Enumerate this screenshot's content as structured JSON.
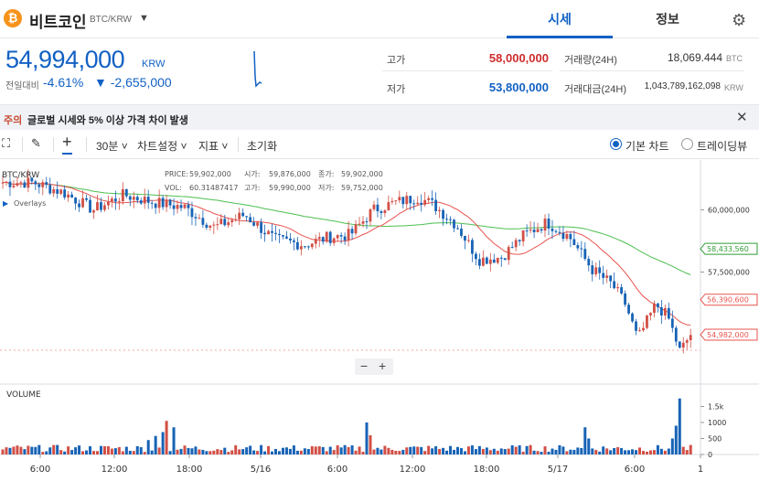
{
  "header": {
    "coin_symbol": "₿",
    "coin_name": "비트코인",
    "pair": "BTC/KRW",
    "caret": "▼",
    "tabs": [
      "시세",
      "정보"
    ],
    "settings_icon": "gear-icon"
  },
  "price": {
    "current": "54,994,000",
    "unit": "KRW",
    "change_label": "전일대비",
    "change_rate": "-4.61%",
    "change_amount": "▼ -2,655,000"
  },
  "stats": {
    "high_label": "고가",
    "high": "58,000,000",
    "low_label": "저가",
    "low": "53,800,000",
    "volume_label": "거래량(24H)",
    "volume": "18,069.444",
    "volume_unit": "BTC",
    "amount_label": "거래대금(24H)",
    "amount": "1,043,789,162,098",
    "amount_unit": "KRW"
  },
  "notice": {
    "tag": "주의",
    "text": "글로벌 시세와 5% 이상 가격 차이 발생",
    "close_icon": "close-icon"
  },
  "toolbar": {
    "fullscreen_icon": "fullscreen-icon",
    "draw_icon": "pencil-icon",
    "crosshair_icon": "crosshair-icon",
    "interval": "30분 ˅",
    "chart_settings": "차트설정 ˅",
    "indicators": "지표 ˅",
    "reset": "초기화",
    "basic_chart": "기본 차트",
    "tradingview": "트레이딩뷰"
  },
  "chart_data": {
    "type": "candlestick",
    "pair": "BTC/KRW",
    "legend": {
      "price_label": "PRICE:",
      "price": "59,902,000",
      "open_label": "시가:",
      "open": "59,876,000",
      "close_label": "종가:",
      "close": "59,902,000",
      "vol_label": "VOL:",
      "vol": "60.31487417",
      "high_label": "고가:",
      "high": "59,990,000",
      "low_label": "저가:",
      "low": "59,752,000"
    },
    "overlays_label": "Overlays",
    "volume_label": "VOLUME",
    "y_ticks": [
      "60,000,000",
      "57,500,000"
    ],
    "y_tick_values": [
      60000000,
      57500000
    ],
    "volume_ticks": [
      "1.5k",
      "1000",
      "500",
      "0"
    ],
    "volume_tick_values": [
      1500,
      1000,
      500,
      0
    ],
    "price_tags": [
      {
        "label": "58,433,560",
        "value": 58433560,
        "color": "#2f9e36"
      },
      {
        "label": "56,390,600",
        "value": 56390600,
        "color": "#e8534e"
      },
      {
        "label": "54,982,000",
        "value": 54982000,
        "color": "#e8534e"
      }
    ],
    "x_ticks": [
      "6:00",
      "12:00",
      "18:00",
      "5/16",
      "6:00",
      "12:00",
      "18:00",
      "5/17",
      "6:00",
      "1"
    ],
    "ylim": [
      53000000,
      62000000
    ],
    "volume_ylim": [
      0,
      2200
    ],
    "zoom_out": "−",
    "zoom_in": "+"
  }
}
